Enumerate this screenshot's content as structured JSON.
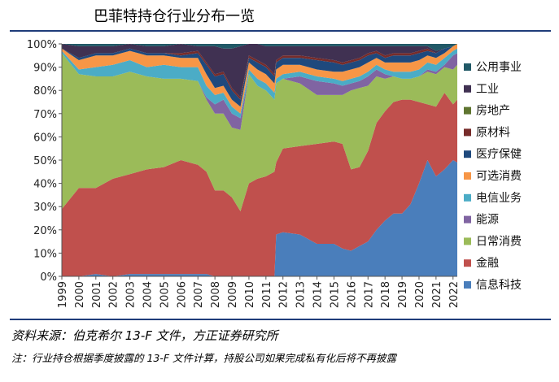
{
  "page": {
    "title": "巴菲特持仓行业分布一览",
    "source": "资料来源：伯克希尔 13-F 文件，方正证券研究所",
    "note": "注：行业持仓根据季度披露的 13-F 文件计算，持股公司如果完成私有化后将不再披露"
  },
  "chart_data": {
    "type": "area",
    "stacked": true,
    "title": "巴菲特持仓行业分布一览",
    "xlabel": "",
    "ylabel": "",
    "ylim": [
      0,
      100
    ],
    "y_unit": "%",
    "y_ticks": [
      "0%",
      "10%",
      "20%",
      "30%",
      "40%",
      "50%",
      "60%",
      "70%",
      "80%",
      "90%",
      "100%"
    ],
    "x_ticks": [
      "1999",
      "2000",
      "2001",
      "2002",
      "2003",
      "2004",
      "2005",
      "2006",
      "2007",
      "2008",
      "2009",
      "2010",
      "2011",
      "2012",
      "2013",
      "2014",
      "2015",
      "2016",
      "2017",
      "2018",
      "2019",
      "2020",
      "2021",
      "2022"
    ],
    "legend_position": "right",
    "x": [
      1999.0,
      2000.0,
      2001.0,
      2002.0,
      2003.0,
      2004.0,
      2005.0,
      2006.0,
      2007.0,
      2007.5,
      2008.0,
      2008.5,
      2009.0,
      2009.5,
      2010.0,
      2010.5,
      2011.0,
      2011.5,
      2011.6,
      2012.0,
      2013.0,
      2014.0,
      2015.0,
      2015.5,
      2016.0,
      2016.5,
      2017.0,
      2017.5,
      2018.0,
      2018.5,
      2019.0,
      2019.5,
      2020.0,
      2020.5,
      2021.0,
      2021.5,
      2022.0,
      2022.25
    ],
    "series": [
      {
        "name": "信息科技",
        "color": "#4a7ebb",
        "values": [
          0,
          0,
          1,
          0,
          1,
          1,
          1,
          1,
          1,
          1,
          0,
          0,
          0,
          0,
          0,
          0,
          0,
          0,
          18,
          19,
          18,
          14,
          14,
          12,
          11,
          13,
          15,
          20,
          24,
          27,
          27,
          31,
          40,
          50,
          43,
          46,
          50,
          49
        ]
      },
      {
        "name": "金融",
        "color": "#c0504d",
        "values": [
          29,
          38,
          37,
          42,
          43,
          45,
          46,
          49,
          47,
          44,
          37,
          37,
          34,
          28,
          40,
          42,
          43,
          45,
          31,
          36,
          38,
          43,
          44,
          45,
          35,
          34,
          39,
          46,
          47,
          48,
          49,
          45,
          35,
          24,
          30,
          33,
          24,
          27
        ]
      },
      {
        "name": "日常消费",
        "color": "#9bbb59",
        "values": [
          67,
          49,
          48,
          44,
          44,
          40,
          38,
          35,
          36,
          31,
          33,
          33,
          30,
          35,
          47,
          40,
          37,
          31,
          34,
          30,
          27,
          21,
          20,
          21,
          34,
          34,
          28,
          20,
          14,
          11,
          9,
          9,
          11,
          14,
          14,
          11,
          15,
          15
        ]
      },
      {
        "name": "能源",
        "color": "#8064a2",
        "values": [
          0,
          0,
          0,
          0,
          0,
          0,
          0,
          0,
          0,
          1,
          4,
          6,
          6,
          5,
          0,
          0,
          0,
          0,
          0,
          0,
          3,
          6,
          5,
          4,
          3,
          3,
          4,
          3,
          2,
          0,
          0,
          0,
          0,
          1,
          1,
          1,
          6,
          5
        ]
      },
      {
        "name": "电信业务",
        "color": "#4bacc6",
        "values": [
          1,
          2,
          4,
          5,
          5,
          4,
          6,
          5,
          6,
          5,
          4,
          3,
          3,
          2,
          2,
          3,
          3,
          3,
          2,
          2,
          2,
          2,
          2,
          2,
          2,
          2,
          2,
          2,
          2,
          2,
          3,
          3,
          3,
          3,
          3,
          3,
          2,
          2
        ]
      },
      {
        "name": "可选消费",
        "color": "#f79646",
        "values": [
          1,
          4,
          5,
          4,
          4,
          5,
          4,
          4,
          4,
          5,
          3,
          3,
          3,
          3,
          3,
          4,
          4,
          4,
          4,
          4,
          3,
          3,
          3,
          4,
          4,
          4,
          4,
          3,
          3,
          4,
          4,
          4,
          4,
          3,
          3,
          2,
          2,
          2
        ]
      },
      {
        "name": "医疗保健",
        "color": "#1f497d",
        "values": [
          0,
          1,
          1,
          1,
          1,
          1,
          1,
          1,
          2,
          4,
          5,
          5,
          4,
          3,
          2,
          3,
          3,
          3,
          3,
          3,
          3,
          4,
          4,
          3,
          3,
          3,
          3,
          2,
          2,
          3,
          3,
          3,
          3,
          2,
          2,
          2,
          0,
          0
        ]
      },
      {
        "name": "原材料",
        "color": "#772c2a",
        "values": [
          0,
          0,
          0,
          0,
          0,
          0,
          0,
          1,
          1,
          1,
          1,
          1,
          1,
          1,
          1,
          1,
          1,
          1,
          1,
          1,
          1,
          1,
          1,
          1,
          1,
          1,
          1,
          1,
          1,
          1,
          1,
          1,
          1,
          1,
          0,
          0,
          0,
          0
        ]
      },
      {
        "name": "房地产",
        "color": "#5f7530",
        "values": [
          0,
          0,
          0,
          0,
          0,
          0,
          0,
          0,
          0,
          0,
          0,
          0,
          0,
          0,
          0,
          0,
          0,
          0,
          0,
          0,
          0,
          0,
          0,
          0,
          0,
          0,
          0,
          0,
          0,
          0,
          0,
          0,
          0,
          0,
          0,
          0,
          0,
          0
        ]
      },
      {
        "name": "工业",
        "color": "#403152",
        "values": [
          2,
          5,
          3,
          3,
          2,
          3,
          3,
          4,
          2,
          7,
          12,
          10,
          17,
          22,
          5,
          7,
          8,
          12,
          6,
          4,
          4,
          5,
          6,
          7,
          6,
          5,
          3,
          2,
          4,
          3,
          3,
          3,
          2,
          1,
          1,
          0,
          0,
          0
        ]
      },
      {
        "name": "公用事业",
        "color": "#215967",
        "values": [
          0,
          1,
          1,
          1,
          0,
          1,
          1,
          0,
          1,
          1,
          1,
          2,
          2,
          1,
          0,
          0,
          1,
          1,
          1,
          1,
          1,
          1,
          1,
          1,
          1,
          1,
          1,
          1,
          1,
          1,
          1,
          1,
          1,
          1,
          3,
          2,
          1,
          0
        ]
      }
    ]
  }
}
